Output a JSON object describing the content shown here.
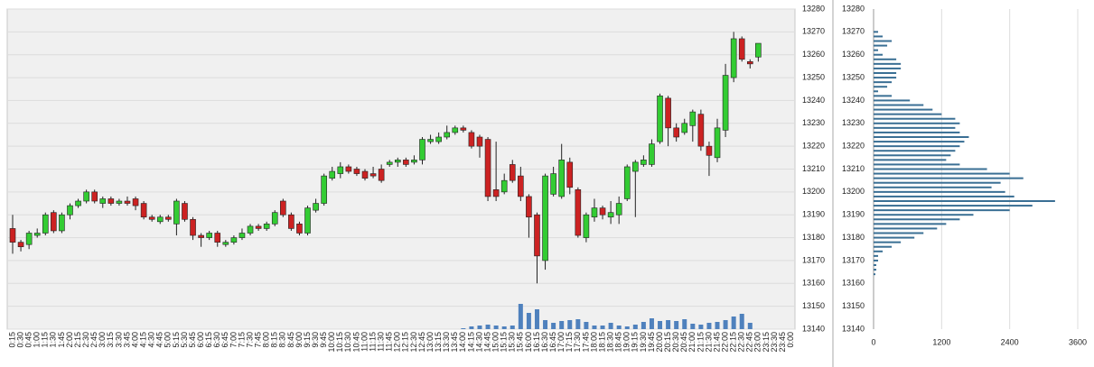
{
  "chart_data": [
    {
      "type": "candlestick",
      "categories": [
        "0:15",
        "0:30",
        "0:45",
        "1:00",
        "1:15",
        "1:30",
        "1:45",
        "2:00",
        "2:15",
        "2:30",
        "2:45",
        "3:00",
        "3:15",
        "3:30",
        "3:45",
        "4:00",
        "4:15",
        "4:30",
        "4:45",
        "5:00",
        "5:15",
        "5:30",
        "5:45",
        "6:00",
        "6:15",
        "6:30",
        "6:45",
        "7:00",
        "7:15",
        "7:30",
        "7:45",
        "8:00",
        "8:15",
        "8:30",
        "8:45",
        "9:00",
        "9:15",
        "9:30",
        "9:45",
        "10:00",
        "10:15",
        "10:30",
        "10:45",
        "11:00",
        "11:15",
        "11:30",
        "11:45",
        "12:00",
        "12:15",
        "12:30",
        "12:45",
        "13:00",
        "13:15",
        "13:30",
        "13:45",
        "14:00",
        "14:15",
        "14:30",
        "14:45",
        "15:00",
        "15:15",
        "15:30",
        "15:45",
        "16:00",
        "16:15",
        "16:30",
        "16:45",
        "17:00",
        "17:15",
        "17:30",
        "17:45",
        "18:00",
        "18:15",
        "18:30",
        "18:45",
        "19:00",
        "19:15",
        "19:30",
        "19:45",
        "20:00",
        "20:15",
        "20:30",
        "20:45",
        "21:00",
        "21:15",
        "21:30",
        "21:45",
        "22:00",
        "22:15",
        "22:30",
        "22:45",
        "23:00",
        "23:15",
        "23:30",
        "23:45",
        "0:00"
      ],
      "open": [
        13184,
        13178,
        13177,
        13181,
        13182,
        13191,
        13183,
        13190,
        13194,
        13196,
        13200,
        13195,
        13197,
        13195,
        13196,
        13197,
        13195,
        13189,
        13187,
        13189,
        13186,
        13195,
        13188,
        13181,
        13180,
        13182,
        13177,
        13178,
        13180,
        13182,
        13185,
        13184,
        13186,
        13196,
        13190,
        13186,
        13182,
        13192,
        13195,
        13206,
        13208,
        13211,
        13210,
        13209,
        13208,
        13210,
        13212,
        13213,
        13214,
        13213,
        13214,
        13222,
        13222,
        13224,
        13226,
        13228,
        13226,
        13224,
        13223,
        13201,
        13200,
        13212,
        13207,
        13198,
        13190,
        13170,
        13199,
        13198,
        13213,
        13201,
        13180,
        13189,
        13193,
        13189,
        13190,
        13197,
        13209,
        13212,
        13212,
        13222,
        13241,
        13228,
        13226,
        13229,
        13234,
        13220,
        13215,
        13227,
        13250,
        13267,
        13257,
        13259,
        null,
        null,
        null,
        null
      ],
      "high": [
        13190,
        13179,
        13183,
        13184,
        13191,
        13192,
        13191,
        13195,
        13197,
        13201,
        13201,
        13198,
        13198,
        13197,
        13198,
        13198,
        13196,
        13190,
        13190,
        13190,
        13197,
        13196,
        13189,
        13182,
        13183,
        13183,
        13179,
        13181,
        13184,
        13186,
        13186,
        13187,
        13192,
        13197,
        13191,
        13187,
        13194,
        13197,
        13208,
        13211,
        13213,
        13212,
        13211,
        13210,
        13211,
        13212,
        13214,
        13215,
        13215,
        13216,
        13224,
        13225,
        13226,
        13229,
        13229,
        13229,
        13227,
        13225,
        13224,
        13222,
        13208,
        13214,
        13211,
        13199,
        13191,
        13208,
        13211,
        13221,
        13215,
        13202,
        13191,
        13197,
        13194,
        13196,
        13198,
        13212,
        13214,
        13216,
        13223,
        13243,
        13242,
        13230,
        13232,
        13236,
        13236,
        13222,
        13232,
        13256,
        13270,
        13268,
        13258,
        13265,
        null,
        null,
        null,
        null
      ],
      "low": [
        13173,
        13174,
        13175,
        13180,
        13181,
        13182,
        13182,
        13188,
        13193,
        13195,
        13195,
        13193,
        13194,
        13194,
        13194,
        13192,
        13188,
        13187,
        13186,
        13187,
        13181,
        13187,
        13179,
        13176,
        13179,
        13176,
        13176,
        13177,
        13179,
        13181,
        13183,
        13183,
        13185,
        13189,
        13183,
        13181,
        13181,
        13191,
        13194,
        13205,
        13206,
        13208,
        13207,
        13205,
        13206,
        13204,
        13211,
        13211,
        13211,
        13212,
        13212,
        13221,
        13221,
        13223,
        13225,
        13226,
        13219,
        13215,
        13196,
        13196,
        13199,
        13204,
        13196,
        13180,
        13160,
        13166,
        13198,
        13197,
        13199,
        13180,
        13178,
        13187,
        13188,
        13186,
        13186,
        13196,
        13189,
        13211,
        13211,
        13221,
        13220,
        13222,
        13225,
        13222,
        13218,
        13207,
        13213,
        13224,
        13248,
        13257,
        13254,
        13257,
        null,
        null,
        null,
        null
      ],
      "close": [
        13178,
        13176,
        13182,
        13182,
        13190,
        13183,
        13190,
        13194,
        13196,
        13200,
        13196,
        13197,
        13195,
        13196,
        13195,
        13194,
        13189,
        13188,
        13189,
        13188,
        13196,
        13188,
        13181,
        13180,
        13182,
        13178,
        13178,
        13180,
        13182,
        13185,
        13184,
        13186,
        13191,
        13190,
        13184,
        13182,
        13193,
        13195,
        13207,
        13209,
        13211,
        13209,
        13208,
        13206,
        13207,
        13205,
        13213,
        13214,
        13212,
        13214,
        13223,
        13223,
        13224,
        13226,
        13228,
        13227,
        13220,
        13220,
        13198,
        13198,
        13205,
        13205,
        13198,
        13189,
        13172,
        13207,
        13208,
        13214,
        13202,
        13181,
        13190,
        13193,
        13190,
        13191,
        13195,
        13211,
        13213,
        13214,
        13221,
        13242,
        13228,
        13224,
        13230,
        13235,
        13220,
        13216,
        13228,
        13251,
        13267,
        13258,
        13256,
        13265,
        null,
        null,
        null,
        null
      ],
      "volume": [
        null,
        null,
        null,
        null,
        null,
        null,
        null,
        null,
        null,
        null,
        null,
        null,
        null,
        null,
        null,
        null,
        null,
        null,
        null,
        null,
        null,
        null,
        null,
        null,
        null,
        null,
        null,
        null,
        null,
        null,
        null,
        null,
        null,
        null,
        null,
        null,
        null,
        null,
        null,
        null,
        null,
        null,
        null,
        null,
        null,
        null,
        null,
        null,
        null,
        null,
        null,
        null,
        null,
        null,
        null,
        1,
        3,
        4,
        5,
        4,
        3,
        4,
        28,
        18,
        22,
        10,
        7,
        9,
        10,
        11,
        8,
        4,
        4,
        7,
        4,
        3,
        5,
        8,
        12,
        9,
        10,
        9,
        11,
        6,
        5,
        7,
        8,
        10,
        14,
        17,
        7,
        null,
        null,
        null,
        null,
        null
      ],
      "up_color": "#33cc33",
      "down_color": "#cc2222",
      "volume_color": "#4f81bd",
      "ylim": [
        13140,
        13280
      ],
      "yticks": [
        13140,
        13150,
        13160,
        13170,
        13180,
        13190,
        13200,
        13210,
        13220,
        13230,
        13240,
        13250,
        13260,
        13270,
        13280
      ],
      "grid": true
    },
    {
      "type": "profile",
      "prices": [
        13270,
        13268,
        13266,
        13264,
        13262,
        13260,
        13258,
        13256,
        13254,
        13252,
        13250,
        13248,
        13246,
        13244,
        13242,
        13240,
        13238,
        13236,
        13234,
        13232,
        13230,
        13228,
        13226,
        13224,
        13222,
        13220,
        13218,
        13216,
        13214,
        13212,
        13210,
        13208,
        13206,
        13204,
        13202,
        13200,
        13198,
        13196,
        13194,
        13192,
        13190,
        13188,
        13186,
        13184,
        13182,
        13180,
        13178,
        13176,
        13174,
        13172,
        13170,
        13168,
        13166,
        13164
      ],
      "values": [
        80,
        160,
        320,
        240,
        80,
        160,
        400,
        480,
        480,
        400,
        400,
        320,
        240,
        80,
        320,
        640,
        880,
        1040,
        1200,
        1440,
        1520,
        1440,
        1520,
        1680,
        1600,
        1520,
        1440,
        1360,
        1280,
        1520,
        2000,
        2400,
        2640,
        2240,
        2080,
        2320,
        2480,
        3200,
        2800,
        2400,
        1760,
        1520,
        1280,
        1120,
        880,
        720,
        480,
        320,
        160,
        80,
        80,
        48,
        48,
        32
      ],
      "color": "#3a6f94",
      "xlim": [
        0,
        3600
      ],
      "xticks": [
        0,
        1200,
        2400,
        3600
      ],
      "ylim": [
        13140,
        13280
      ],
      "yticks": [
        13140,
        13150,
        13160,
        13170,
        13180,
        13190,
        13200,
        13210,
        13220,
        13230,
        13240,
        13250,
        13260,
        13270,
        13280
      ],
      "grid": true
    }
  ]
}
